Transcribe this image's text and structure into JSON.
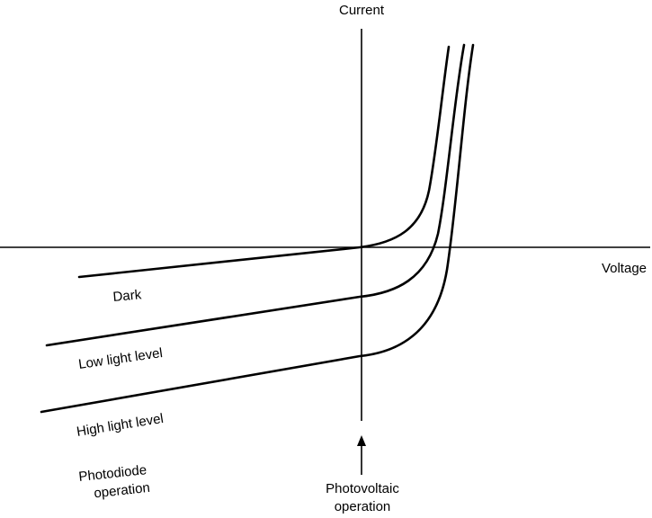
{
  "diagram": {
    "axes": {
      "y_label": "Current",
      "x_label": "Voltage"
    },
    "curves": [
      {
        "id": "dark",
        "label": "Dark"
      },
      {
        "id": "low",
        "label": "Low light level"
      },
      {
        "id": "high",
        "label": "High light level"
      }
    ],
    "regions": {
      "photodiode": [
        "Photodiode",
        "operation"
      ],
      "photovoltaic": [
        "Photovoltaic",
        "operation"
      ]
    }
  }
}
